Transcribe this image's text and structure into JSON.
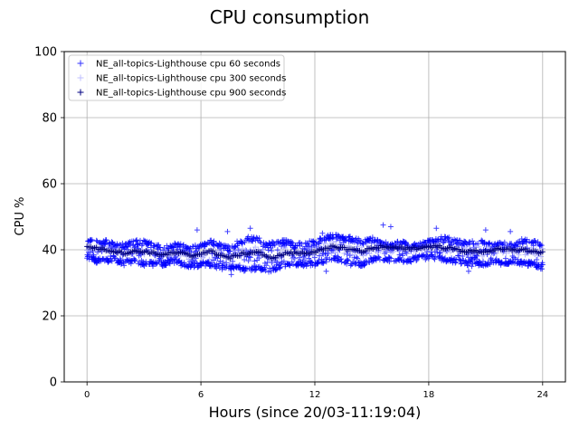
{
  "chart_data": {
    "type": "scatter",
    "title": "CPU consumption",
    "xlabel": "Hours (since 20/03-11:19:04)",
    "ylabel": "CPU %",
    "xlim": [
      -1.2,
      25.2
    ],
    "ylim": [
      0,
      100
    ],
    "xticks": [
      0,
      6,
      12,
      18,
      24
    ],
    "yticks": [
      0,
      20,
      40,
      60,
      80,
      100
    ],
    "grid": true,
    "legend_position": "upper-left",
    "marker": "+",
    "series": [
      {
        "name": "NE_all-topics-Lighthouse cpu 60 seconds",
        "color": "#0000ff",
        "opacity": 0.75,
        "spread_upper": [
          44,
          43,
          43,
          42,
          42,
          43,
          43,
          42,
          41,
          42,
          42,
          41,
          42,
          43,
          42,
          41,
          43,
          44,
          44,
          42,
          43,
          43,
          42,
          43,
          43,
          44,
          45,
          44,
          44,
          43,
          44,
          43,
          42,
          43,
          42,
          42,
          43,
          44,
          44,
          43,
          43,
          43,
          43,
          42,
          43,
          42,
          44,
          43,
          42
        ],
        "spread_lower": [
          37,
          36,
          36,
          36,
          35,
          36,
          35,
          35,
          35,
          36,
          35,
          34,
          35,
          35,
          34,
          34,
          34,
          33,
          34,
          33,
          34,
          35,
          35,
          35,
          35,
          36,
          37,
          36,
          35,
          35,
          36,
          37,
          36,
          36,
          36,
          37,
          37,
          37,
          36,
          36,
          35,
          35,
          35,
          36,
          35,
          36,
          35,
          35,
          34
        ],
        "outliers": [
          [
            5.8,
            46
          ],
          [
            7.4,
            45.5
          ],
          [
            8.6,
            46.5
          ],
          [
            12.4,
            45
          ],
          [
            15.6,
            47.5
          ],
          [
            16.0,
            47
          ],
          [
            18.4,
            46.5
          ],
          [
            21.0,
            46
          ],
          [
            22.3,
            45.5
          ],
          [
            12.6,
            33.5
          ],
          [
            20.1,
            33.5
          ],
          [
            7.6,
            32.5
          ]
        ]
      },
      {
        "name": "NE_all-topics-Lighthouse cpu 300 seconds",
        "color": "#8080ff",
        "opacity": 0.55,
        "spread_upper": [
          41.5,
          41,
          41,
          40.5,
          40,
          40.5,
          41,
          40,
          39.5,
          40,
          40,
          39,
          40,
          41,
          40,
          39,
          40,
          41,
          41,
          40,
          40.5,
          41,
          40.5,
          41,
          41,
          42,
          43,
          42,
          41.5,
          41,
          42,
          42,
          41.5,
          42,
          41.5,
          41.5,
          42,
          42,
          42,
          41.5,
          41,
          41,
          41,
          41,
          41.5,
          41,
          41.5,
          41,
          40.5
        ],
        "spread_lower": [
          39.5,
          39,
          39,
          38.5,
          38,
          38.5,
          38,
          38,
          37.5,
          38,
          38,
          36,
          37,
          37,
          36,
          36,
          37,
          37,
          37,
          35,
          36,
          37,
          37,
          37,
          38,
          38,
          39,
          39,
          38,
          38,
          38.5,
          39.5,
          39,
          39,
          39,
          39.5,
          39.5,
          39.5,
          39,
          39,
          38,
          38,
          38,
          38.5,
          38.5,
          38.5,
          38,
          38,
          37.5
        ]
      },
      {
        "name": "NE_all-topics-Lighthouse cpu 900 seconds",
        "color": "#000080",
        "opacity": 1,
        "x": [
          0,
          0.5,
          1,
          1.5,
          2,
          2.5,
          3,
          3.5,
          4,
          4.5,
          5,
          5.5,
          6,
          6.5,
          7,
          7.5,
          8,
          8.5,
          9,
          9.5,
          10,
          10.5,
          11,
          11.5,
          12,
          12.5,
          13,
          13.5,
          14,
          14.5,
          15,
          15.5,
          16,
          16.5,
          17,
          17.5,
          18,
          18.5,
          19,
          19.5,
          20,
          20.5,
          21,
          21.5,
          22,
          22.5,
          23,
          23.5,
          24
        ],
        "y": [
          41,
          40.5,
          40,
          39.5,
          39,
          39.5,
          39.5,
          39,
          38.5,
          39,
          39,
          38,
          39,
          39.5,
          38.5,
          37.5,
          38.5,
          39,
          39.5,
          37.5,
          38,
          39,
          39,
          39,
          39.5,
          40,
          41,
          40.5,
          40,
          39.5,
          40.5,
          41,
          40.5,
          40.5,
          40.5,
          40.5,
          41,
          41,
          40.5,
          40,
          39.5,
          39.5,
          39.5,
          40,
          40,
          40,
          40,
          39.5,
          39
        ]
      }
    ]
  }
}
